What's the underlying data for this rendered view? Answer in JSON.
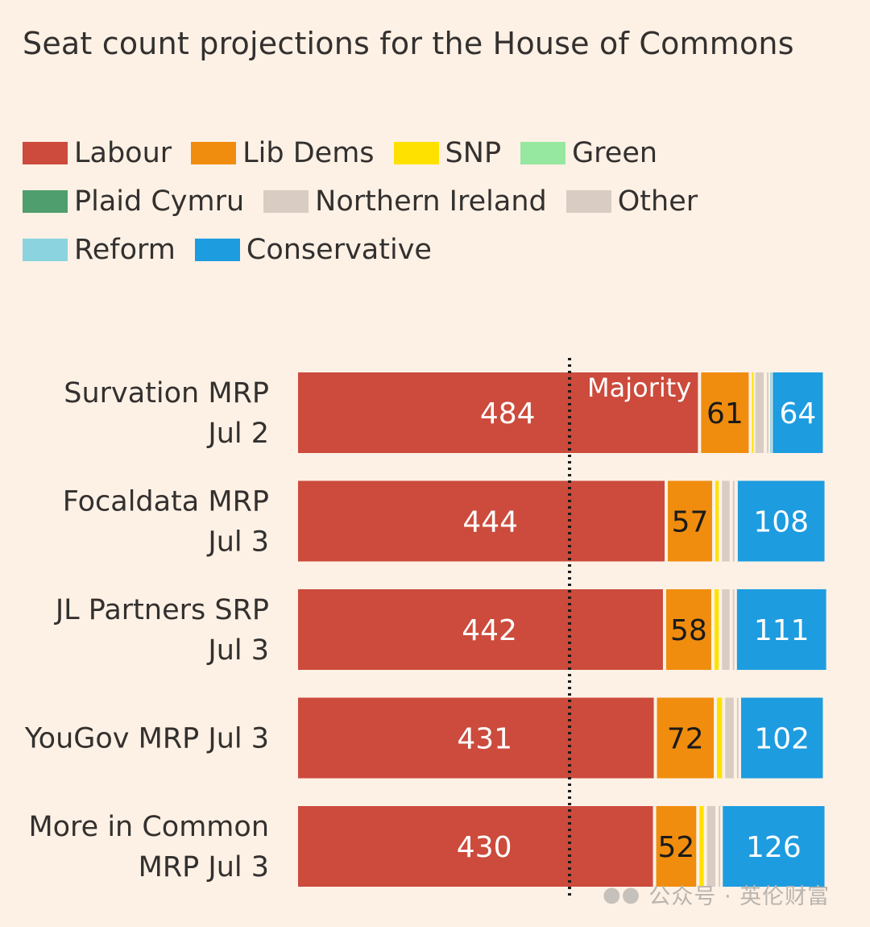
{
  "chart_data": {
    "type": "bar",
    "stacked": true,
    "orientation": "horizontal",
    "title": "Seat count projections for the House of Commons",
    "annotation": "Majority",
    "majority_line": 326,
    "xlim": [
      0,
      650
    ],
    "categories": [
      [
        "Survation MRP",
        "Jul 2"
      ],
      [
        "Focaldata MRP",
        "Jul 3"
      ],
      [
        "JL Partners SRP",
        "Jul 3"
      ],
      [
        "YouGov MRP Jul 3"
      ],
      [
        "More in Common",
        "MRP Jul 3"
      ]
    ],
    "series": [
      {
        "name": "Labour",
        "color": "#cc4b3c",
        "label_color": "#ffffff",
        "values": [
          484,
          444,
          442,
          431,
          430
        ],
        "labels": [
          "484",
          "444",
          "442",
          "431",
          "430"
        ]
      },
      {
        "name": "Lib Dems",
        "color": "#f08d0e",
        "label_color": "#1a1a1a",
        "values": [
          61,
          57,
          58,
          72,
          52
        ],
        "labels": [
          "61",
          "57",
          "58",
          "72",
          "52"
        ]
      },
      {
        "name": "SNP",
        "color": "#ffe100",
        "values": [
          4,
          8,
          9,
          10,
          9
        ],
        "labels": [
          "",
          "",
          "",
          "",
          ""
        ]
      },
      {
        "name": "Green",
        "color": "#96e8a0",
        "values": [
          0,
          0,
          0,
          0,
          0
        ],
        "labels": [
          "",
          "",
          "",
          "",
          ""
        ]
      },
      {
        "name": "Plaid Cymru",
        "color": "#4f9e6d",
        "values": [
          0,
          0,
          0,
          0,
          0
        ],
        "labels": [
          "",
          "",
          "",
          "",
          ""
        ]
      },
      {
        "name": "Northern Ireland",
        "color": "#d9cdc3",
        "values": [
          14,
          13,
          13,
          14,
          14
        ],
        "labels": [
          "",
          "",
          "",
          "",
          ""
        ]
      },
      {
        "name": "Other",
        "color": "#d9cdc3",
        "values": [
          4,
          6,
          5,
          5,
          5
        ],
        "labels": [
          "",
          "",
          "",
          "",
          ""
        ]
      },
      {
        "name": "Reform",
        "color": "#8bd3df",
        "values": [
          3,
          0,
          0,
          0,
          0
        ],
        "labels": [
          "",
          "",
          "",
          "",
          ""
        ]
      },
      {
        "name": "Conservative",
        "color": "#1d9ce0",
        "label_color": "#ffffff",
        "values": [
          64,
          108,
          111,
          102,
          126
        ],
        "labels": [
          "64",
          "108",
          "111",
          "102",
          "126"
        ]
      }
    ]
  },
  "legend": [
    {
      "label": "Labour",
      "color": "#cc4b3c"
    },
    {
      "label": "Lib Dems",
      "color": "#f08d0e"
    },
    {
      "label": "SNP",
      "color": "#ffe100"
    },
    {
      "label": "Green",
      "color": "#96e8a0"
    },
    {
      "label": "Plaid Cymru",
      "color": "#4f9e6d"
    },
    {
      "label": "Northern Ireland",
      "color": "#d9cdc3"
    },
    {
      "label": "Other",
      "color": "#d9cdc3"
    },
    {
      "label": "Reform",
      "color": "#8bd3df"
    },
    {
      "label": "Conservative",
      "color": "#1d9ce0"
    }
  ],
  "watermark": {
    "text": "公众号 · 英伦财富",
    "icon": "wechat-icon"
  }
}
